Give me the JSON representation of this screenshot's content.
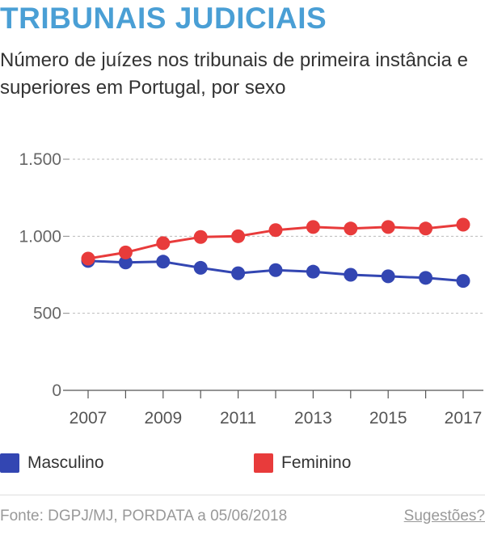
{
  "header": {
    "title": "TRIBUNAIS JUDICIAIS",
    "subtitle": "Número de juízes nos tribunais de primeira instância e superiores em Portugal, por sexo"
  },
  "chart_data": {
    "type": "line",
    "x": [
      2007,
      2008,
      2009,
      2010,
      2011,
      2012,
      2013,
      2014,
      2015,
      2016,
      2017
    ],
    "x_tick_labels": [
      "2007",
      "2009",
      "2011",
      "2013",
      "2015",
      "2017"
    ],
    "y_ticks": [
      0,
      500,
      1000,
      1500
    ],
    "y_tick_labels": [
      "0",
      "500",
      "1.000",
      "1.500"
    ],
    "ylim": [
      0,
      1500
    ],
    "grid": true,
    "legend_position": "bottom",
    "series": [
      {
        "name": "Masculino",
        "color": "#3346b2",
        "values": [
          840,
          830,
          835,
          795,
          760,
          780,
          770,
          750,
          740,
          730,
          710
        ]
      },
      {
        "name": "Feminino",
        "color": "#e83b3b",
        "values": [
          855,
          895,
          955,
          995,
          1000,
          1040,
          1060,
          1050,
          1060,
          1050,
          1075
        ]
      }
    ]
  },
  "footer": {
    "source": "Fonte: DGPJ/MJ, PORDATA a 05/06/2018",
    "suggestions_link": "Sugestões?"
  }
}
